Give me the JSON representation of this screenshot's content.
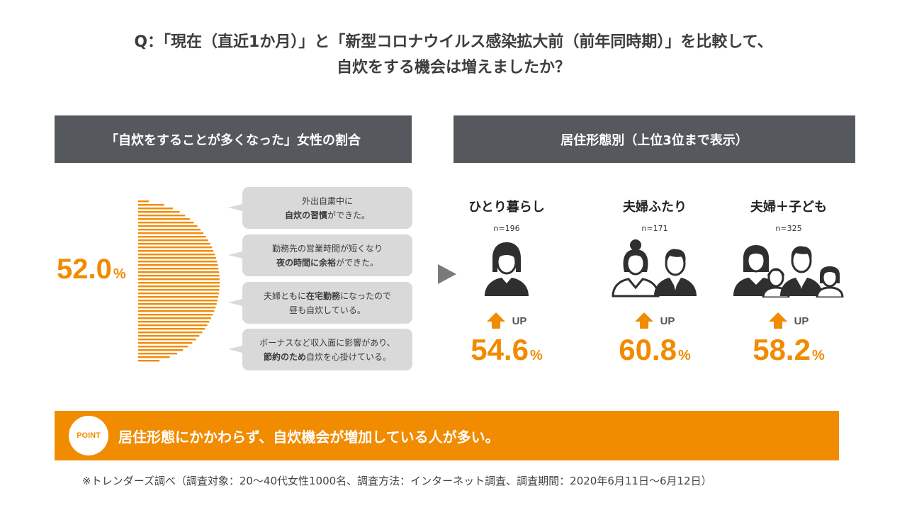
{
  "question": {
    "line1": "Q：「現在（直近1か月）」と「新型コロナウイルス感染拡大前（前年同時期）」を比較して、",
    "line2": "自炊をする機会は増えましたか？"
  },
  "left_panel": {
    "header": "「自炊をすることが多くなった」女性の割合",
    "percent_value": "52.0",
    "percent_unit": "%",
    "bubbles": [
      {
        "line1_pre": "外出自粛中に",
        "line1_bold": "",
        "line2_bold": "自炊の習慣",
        "line2_post": "ができた。"
      },
      {
        "line1_pre": "勤務先の営業時間が短くなり",
        "line1_bold": "",
        "line2_bold": "夜の時間に余裕",
        "line2_post": "ができた。"
      },
      {
        "line1_pre": "夫婦ともに",
        "line1_bold": "在宅勤務",
        "line1_post": "になったので",
        "line2_bold": "",
        "line2_post": "昼も自炊している。"
      },
      {
        "line1_pre": "ボーナスなど収入面に影響があり、",
        "line1_bold": "",
        "line2_bold": "節約のため",
        "line2_post": "自炊を心掛けている。"
      }
    ]
  },
  "right_panel": {
    "header": "居住形態別（上位3位まで表示）",
    "up_label": "UP",
    "groups": [
      {
        "label": "ひとり暮らし",
        "n": "n=196",
        "value": "54.6",
        "unit": "%"
      },
      {
        "label": "夫婦ふたり",
        "n": "n=171",
        "value": "60.8",
        "unit": "%"
      },
      {
        "label": "夫婦＋子ども",
        "n": "n=325",
        "value": "58.2",
        "unit": "%"
      }
    ]
  },
  "point": {
    "badge": "POINT",
    "text": "居住形態にかかわらず、自炊機会が増加している人が多い。"
  },
  "footnote": "※トレンダーズ調べ（調査対象：20～40代女性1000名、調査方法：インターネット調査、調査期間：2020年6月11日～6月12日）",
  "colors": {
    "accent": "#f18b00",
    "header_bg": "#55585d",
    "bubble_bg": "#d9d9d9",
    "icon": "#2f2f2f"
  },
  "chart_data": {
    "type": "bar",
    "categories": [
      "ひとり暮らし",
      "夫婦ふたり",
      "夫婦＋子ども"
    ],
    "values": [
      54.6,
      60.8,
      58.2
    ],
    "n": [
      196,
      171,
      325
    ],
    "overall": 52.0,
    "unit": "%"
  }
}
